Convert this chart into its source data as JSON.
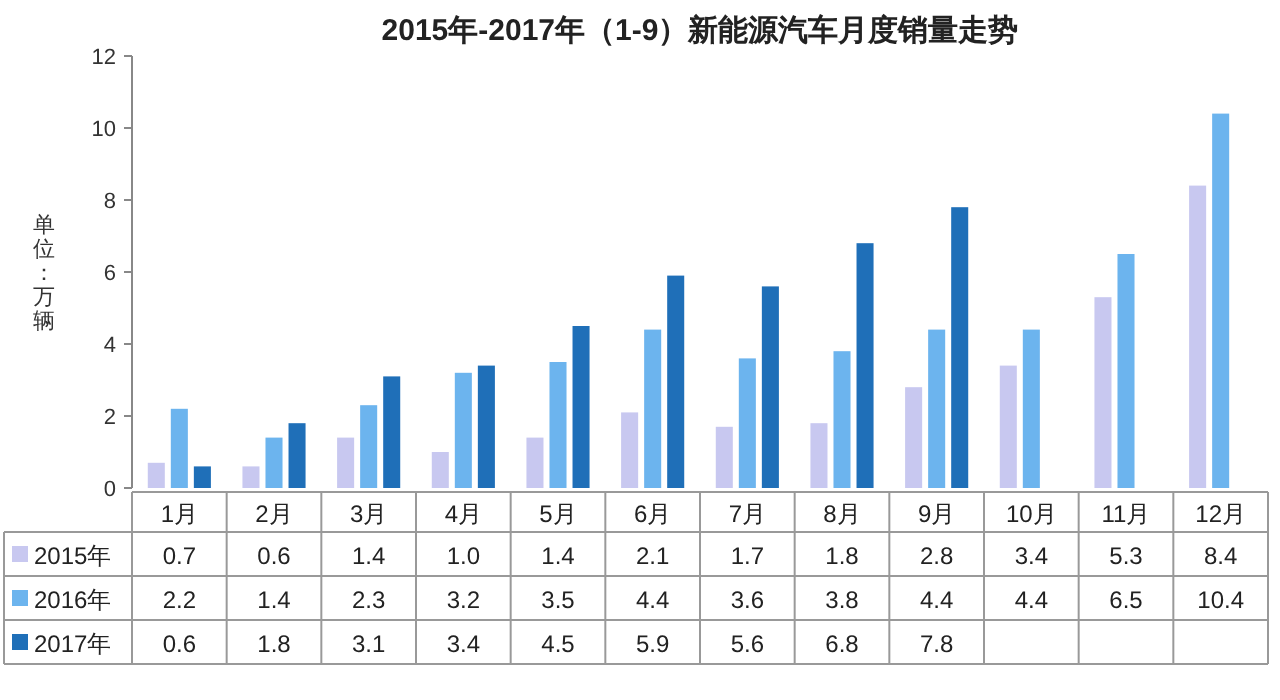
{
  "chart_data": {
    "type": "bar",
    "title": "2015年-2017年（1-9）新能源汽车月度销量走势",
    "ylabel": "单位：万辆",
    "categories": [
      "1月",
      "2月",
      "3月",
      "4月",
      "5月",
      "6月",
      "7月",
      "8月",
      "9月",
      "10月",
      "11月",
      "12月"
    ],
    "series": [
      {
        "name": "2015年",
        "color": "#c8c8f0",
        "values": [
          0.7,
          0.6,
          1.4,
          1.0,
          1.4,
          2.1,
          1.7,
          1.8,
          2.8,
          3.4,
          5.3,
          8.4
        ],
        "value_labels": [
          "0.7",
          "0.6",
          "1.4",
          "1.0",
          "1.4",
          "2.1",
          "1.7",
          "1.8",
          "2.8",
          "3.4",
          "5.3",
          "8.4"
        ]
      },
      {
        "name": "2016年",
        "color": "#6cb4ee",
        "values": [
          2.2,
          1.4,
          2.3,
          3.2,
          3.5,
          4.4,
          3.6,
          3.8,
          4.4,
          4.4,
          6.5,
          10.4
        ],
        "value_labels": [
          "2.2",
          "1.4",
          "2.3",
          "3.2",
          "3.5",
          "4.4",
          "3.6",
          "3.8",
          "4.4",
          "4.4",
          "6.5",
          "10.4"
        ]
      },
      {
        "name": "2017年",
        "color": "#1f6fb8",
        "values": [
          0.6,
          1.8,
          3.1,
          3.4,
          4.5,
          5.9,
          5.6,
          6.8,
          7.8,
          null,
          null,
          null
        ],
        "value_labels": [
          "0.6",
          "1.8",
          "3.1",
          "3.4",
          "4.5",
          "5.9",
          "5.6",
          "6.8",
          "7.8",
          null,
          null,
          null
        ]
      }
    ],
    "ylim": [
      0,
      12
    ],
    "yticks": [
      0,
      2,
      4,
      6,
      8,
      10,
      12
    ],
    "grid": false,
    "legend": "bottom left"
  }
}
